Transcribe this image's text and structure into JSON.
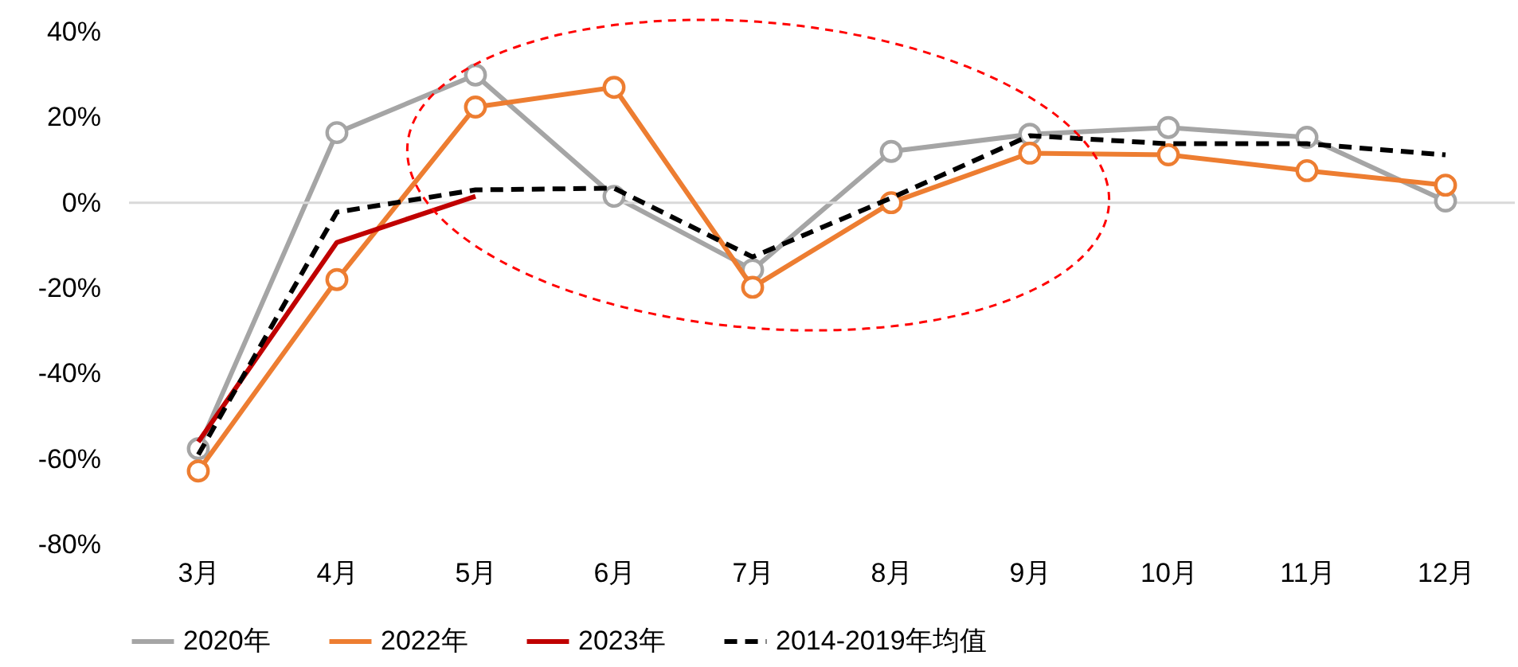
{
  "chart_data": {
    "type": "line",
    "categories": [
      "3月",
      "4月",
      "5月",
      "6月",
      "7月",
      "8月",
      "9月",
      "10月",
      "11月",
      "12月"
    ],
    "series": [
      {
        "name": "2020年",
        "color": "#a5a5a5",
        "marker": "circle",
        "line_style": "solid",
        "values": [
          -57.6,
          16.4,
          29.9,
          1.5,
          -15.7,
          12,
          16,
          17.6,
          15.3,
          0.4
        ]
      },
      {
        "name": "2022年",
        "color": "#ed7d31",
        "marker": "circle",
        "line_style": "solid",
        "values": [
          -62.8,
          -18,
          22.4,
          27,
          -19.8,
          0,
          11.6,
          11.2,
          7.5,
          4.1
        ]
      },
      {
        "name": "2023年",
        "color": "#c00000",
        "marker": "none",
        "line_style": "solid",
        "values": [
          -56,
          -9.3,
          1.5,
          null,
          null,
          null,
          null,
          null,
          null,
          null
        ]
      },
      {
        "name": "2014-2019年均值",
        "color": "#000000",
        "marker": "none",
        "line_style": "dashed",
        "values": [
          -59,
          -2.2,
          3,
          3.4,
          -12.7,
          1.1,
          15.7,
          13.8,
          13.8,
          11.2
        ]
      }
    ],
    "ylim": [
      -80,
      40
    ],
    "yticks": [
      {
        "value": -80,
        "label": "-80%"
      },
      {
        "value": -60,
        "label": "-60%"
      },
      {
        "value": -40,
        "label": "-40%"
      },
      {
        "value": -20,
        "label": "-20%"
      },
      {
        "value": 0,
        "label": "0%"
      },
      {
        "value": 20,
        "label": "20%"
      },
      {
        "value": 40,
        "label": "40%"
      }
    ],
    "ref_lines": [
      {
        "axis": "y",
        "value": 0,
        "color": "#d9d9d9"
      }
    ],
    "grid": false,
    "legend": "bottom"
  }
}
